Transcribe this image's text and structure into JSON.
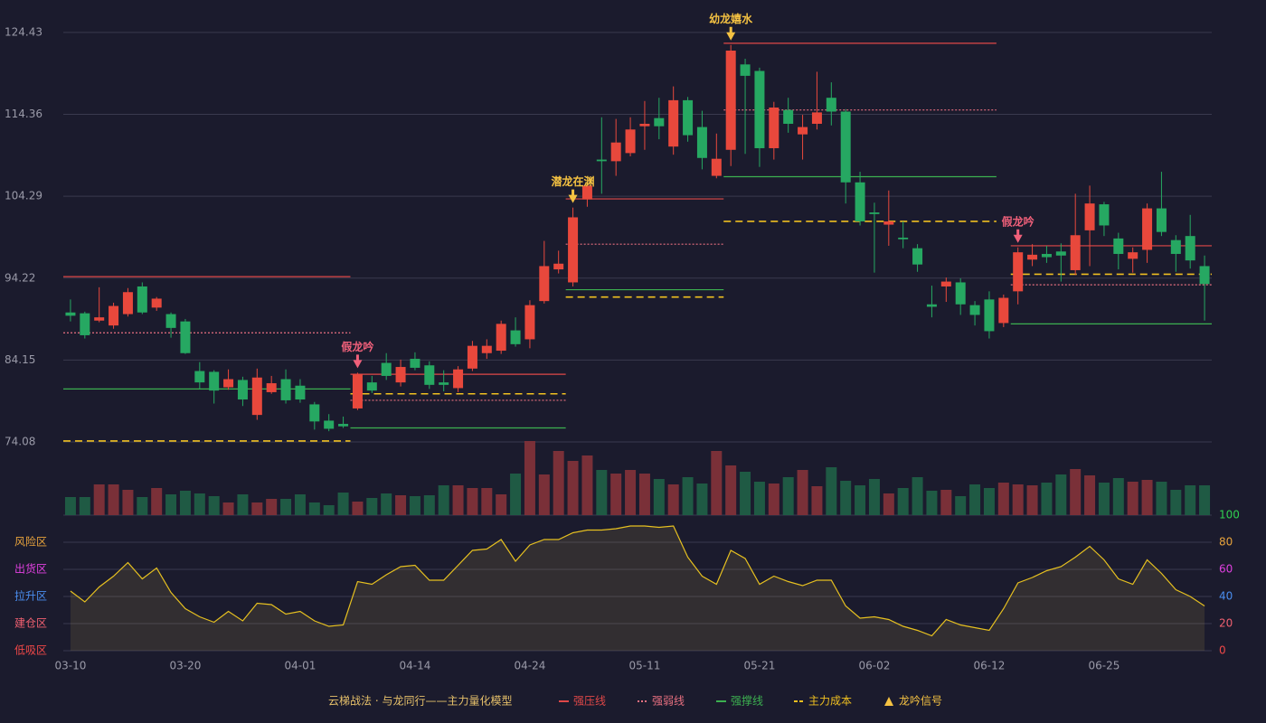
{
  "chart_data": {
    "type": "candlestick",
    "categories": [
      "03-10",
      null,
      null,
      null,
      null,
      null,
      null,
      null,
      "03-20",
      null,
      null,
      null,
      null,
      null,
      null,
      null,
      "04-01",
      null,
      null,
      null,
      null,
      null,
      null,
      null,
      "04-14",
      null,
      null,
      null,
      null,
      null,
      null,
      null,
      "04-24",
      null,
      null,
      null,
      null,
      null,
      null,
      null,
      "05-11",
      null,
      null,
      null,
      null,
      null,
      null,
      null,
      "05-21",
      null,
      null,
      null,
      null,
      null,
      null,
      null,
      "06-02",
      null,
      null,
      null,
      null,
      null,
      null,
      null,
      "06-12",
      null,
      null,
      null,
      null,
      null,
      null,
      null,
      "06-25",
      null,
      null,
      null,
      null,
      null,
      null,
      null
    ],
    "open": [
      90.0,
      89.9,
      89.0,
      88.4,
      89.8,
      93.2,
      90.6,
      89.8,
      88.9,
      82.8,
      82.7,
      80.8,
      81.7,
      77.4,
      80.2,
      81.8,
      81.0,
      78.7,
      76.7,
      76.3,
      78.2,
      81.4,
      83.8,
      81.4,
      84.3,
      83.5,
      81.4,
      80.7,
      83.1,
      85.0,
      85.3,
      87.8,
      86.7,
      91.4,
      95.3,
      93.7,
      103.9,
      108.8,
      108.6,
      109.6,
      112.9,
      113.9,
      110.4,
      116.1,
      112.8,
      106.8,
      110.0,
      120.5,
      119.7,
      110.2,
      114.9,
      111.9,
      113.2,
      116.4,
      114.7,
      106.0,
      102.3,
      100.8,
      99.2,
      97.9,
      91.0,
      93.2,
      93.7,
      90.9,
      91.6,
      88.7,
      92.6,
      96.5,
      97.2,
      97.5,
      95.2,
      100.1,
      103.3,
      99.1,
      96.6,
      97.7,
      102.8,
      98.9,
      99.4,
      95.7
    ],
    "high": [
      91.6,
      90.1,
      93.1,
      91.2,
      93.0,
      93.7,
      91.9,
      90.0,
      89.2,
      83.9,
      82.9,
      83.0,
      82.1,
      83.1,
      82.2,
      83.0,
      81.8,
      79.0,
      77.5,
      77.2,
      82.6,
      82.2,
      85.0,
      84.2,
      85.1,
      84.0,
      82.9,
      83.4,
      86.5,
      86.7,
      89.0,
      89.4,
      91.5,
      98.8,
      97.6,
      102.9,
      105.8,
      114.0,
      113.8,
      114.0,
      116.0,
      116.4,
      117.8,
      116.5,
      114.8,
      112.0,
      122.9,
      121.2,
      120.1,
      115.9,
      116.4,
      114.3,
      119.6,
      118.3,
      115.0,
      107.3,
      103.5,
      105.0,
      101.2,
      98.4,
      93.3,
      94.3,
      94.2,
      91.4,
      92.6,
      92.2,
      98.0,
      98.4,
      98.2,
      98.5,
      104.6,
      105.6,
      103.6,
      99.8,
      98.0,
      103.4,
      107.3,
      99.5,
      102.0,
      97.0
    ],
    "low": [
      88.9,
      86.8,
      88.8,
      88.0,
      89.5,
      89.8,
      90.2,
      86.9,
      84.9,
      80.6,
      78.8,
      80.5,
      78.5,
      76.8,
      80.0,
      78.8,
      78.9,
      75.6,
      75.4,
      75.8,
      78.0,
      80.1,
      81.7,
      80.9,
      82.9,
      80.6,
      80.3,
      80.2,
      82.8,
      84.3,
      84.9,
      85.8,
      85.6,
      91.1,
      94.8,
      93.2,
      103.0,
      104.6,
      106.8,
      109.2,
      110.0,
      111.3,
      109.4,
      111.0,
      107.6,
      106.5,
      108.0,
      109.5,
      107.9,
      108.8,
      112.1,
      108.8,
      112.5,
      113.0,
      103.4,
      100.7,
      94.9,
      98.2,
      97.9,
      95.0,
      89.4,
      91.3,
      89.7,
      88.4,
      86.8,
      88.2,
      91.0,
      95.7,
      96.1,
      93.8,
      94.6,
      95.7,
      99.4,
      95.3,
      94.9,
      96.1,
      99.4,
      95.0,
      95.4,
      89.0
    ],
    "close": [
      89.6,
      87.2,
      89.4,
      90.8,
      92.5,
      90.0,
      91.7,
      88.1,
      85.0,
      81.4,
      80.4,
      81.8,
      79.3,
      82.0,
      81.3,
      79.2,
      79.3,
      76.6,
      75.7,
      76.0,
      82.4,
      80.4,
      82.2,
      83.3,
      83.2,
      81.1,
      81.1,
      83.0,
      85.9,
      85.9,
      88.6,
      86.1,
      90.9,
      95.7,
      96.0,
      101.7,
      105.6,
      108.6,
      110.9,
      112.5,
      113.2,
      112.9,
      116.1,
      111.8,
      109.0,
      108.9,
      122.2,
      119.1,
      110.2,
      115.2,
      113.2,
      112.8,
      114.6,
      114.7,
      106.0,
      101.2,
      102.1,
      101.2,
      99.0,
      95.9,
      90.7,
      93.8,
      91.0,
      89.7,
      87.7,
      91.8,
      97.4,
      97.1,
      96.8,
      97.0,
      99.5,
      103.4,
      100.7,
      97.2,
      97.4,
      102.8,
      99.9,
      97.2,
      96.4,
      93.5
    ],
    "up_color": "#e8483c",
    "down_color": "#26a862",
    "volume": [
      20,
      20,
      34,
      34,
      28,
      20,
      30,
      23,
      27,
      24,
      21,
      14,
      23,
      14,
      18,
      18,
      23,
      14,
      11,
      25,
      15,
      19,
      24,
      22,
      21,
      22,
      33,
      33,
      30,
      30,
      23,
      46,
      82,
      45,
      71,
      60,
      66,
      50,
      46,
      50,
      46,
      40,
      34,
      42,
      35,
      71,
      55,
      48,
      37,
      35,
      42,
      50,
      32,
      53,
      38,
      33,
      40,
      24,
      30,
      42,
      27,
      28,
      21,
      34,
      30,
      36,
      34,
      33,
      36,
      45,
      51,
      44,
      36,
      41,
      37,
      39,
      37,
      28,
      33,
      33
    ],
    "volume_up_color": "#7a3038",
    "volume_down_color": "#1f5a44",
    "ylim": [
      73.97,
      126.2
    ],
    "yticks": [
      74.08,
      84.15,
      94.22,
      104.29,
      114.36,
      124.43
    ],
    "levels": [
      {
        "start": 0,
        "end": 19,
        "resistance": 94.4,
        "pivot": 87.5,
        "support": 80.6,
        "cost": 74.2
      },
      {
        "start": 20,
        "end": 34,
        "resistance": 82.4,
        "pivot": 79.2,
        "support": 75.8,
        "cost": 80.0
      },
      {
        "start": 35,
        "end": 45,
        "resistance": 103.97,
        "pivot": 98.4,
        "support": 92.8,
        "cost": 91.9
      },
      {
        "start": 46,
        "end": 64,
        "resistance": 123.1,
        "pivot": 114.9,
        "support": 106.7,
        "cost": 101.2
      },
      {
        "start": 66,
        "end": 79,
        "resistance": 98.2,
        "pivot": 93.4,
        "support": 88.6,
        "cost": 94.7
      }
    ],
    "level_colors": {
      "resistance": "#e04848",
      "pivot": "#e87080",
      "support": "#3cb050",
      "cost": "#f0c020"
    },
    "signals": [
      {
        "index": 20,
        "label": "假龙吟",
        "color": "#f0607a"
      },
      {
        "index": 35,
        "label": "潜龙在渊",
        "color": "#f5c242"
      },
      {
        "index": 46,
        "label": "幼龙嬉水",
        "color": "#f5c242"
      },
      {
        "index": 66,
        "label": "假龙吟",
        "color": "#f0607a"
      }
    ],
    "oscillator": {
      "color": "#e6c020",
      "values": [
        44,
        36,
        47,
        55,
        65,
        53,
        61,
        43,
        31,
        25,
        21,
        29,
        22,
        35,
        34,
        27,
        29,
        22,
        18,
        19,
        51,
        49,
        56,
        62,
        63,
        52,
        52,
        63,
        74,
        75,
        82,
        66,
        78,
        82,
        82,
        87,
        89,
        89,
        90,
        92,
        92,
        91,
        92,
        69,
        55,
        49,
        74,
        68,
        49,
        55,
        51,
        48,
        52,
        52,
        33,
        24,
        25,
        23,
        18,
        15,
        11,
        23,
        19,
        17,
        15,
        31,
        50,
        54,
        59,
        62,
        69,
        77,
        67,
        53,
        49,
        67,
        57,
        45,
        40,
        33
      ]
    },
    "y2lim": [
      0,
      100
    ],
    "y2ticks": [
      0,
      20,
      40,
      60,
      80,
      100
    ],
    "y2tick_colors": [
      "#f04848",
      "#f06070",
      "#4a8ef0",
      "#e040e0",
      "#e8a33c",
      "#30d050"
    ],
    "zones": [
      {
        "label": "风险区",
        "value": 80,
        "color": "#e8a33c"
      },
      {
        "label": "出货区",
        "value": 60,
        "color": "#e040e0"
      },
      {
        "label": "拉升区",
        "value": 40,
        "color": "#4a8ef0"
      },
      {
        "label": "建仓区",
        "value": 20,
        "color": "#f06070"
      },
      {
        "label": "低吸区",
        "value": 0,
        "color": "#f04848"
      }
    ],
    "legend": {
      "title": "云梯战法 · 与龙同行——主力量化模型",
      "title_color": "#e6c06a",
      "items": [
        {
          "name": "强压线",
          "color": "#e04848",
          "style": "solid"
        },
        {
          "name": "强弱线",
          "color": "#e87080",
          "style": "dotted"
        },
        {
          "name": "强撑线",
          "color": "#3cb050",
          "style": "solid"
        },
        {
          "name": "主力成本",
          "color": "#f0c020",
          "style": "dashed"
        },
        {
          "name": "龙吟信号",
          "color": "#f5c242",
          "style": "triangle"
        }
      ]
    }
  }
}
